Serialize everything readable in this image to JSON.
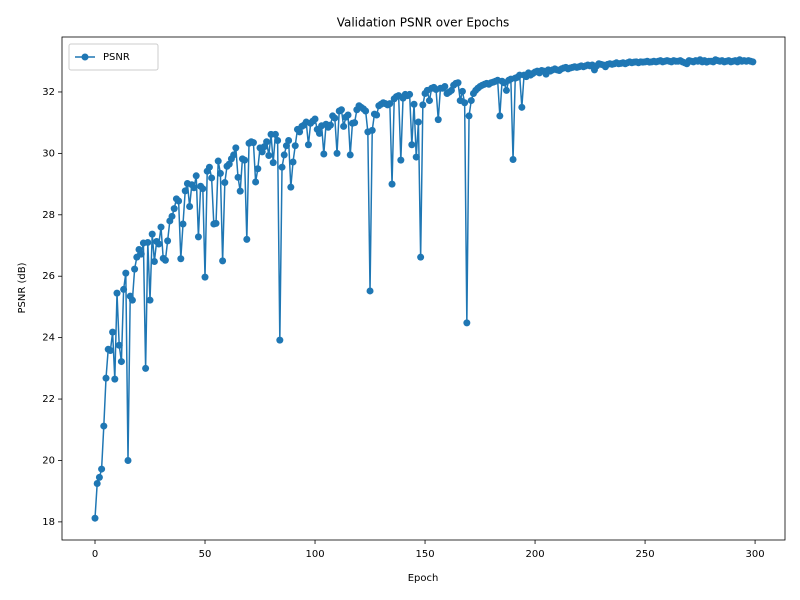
{
  "chart_data": {
    "type": "line",
    "title": "Validation PSNR over Epochs",
    "x_label": "Epoch",
    "y_label": "PSNR (dB)",
    "x": [
      0,
      1,
      2,
      3,
      4,
      5,
      6,
      7,
      8,
      9,
      10,
      11,
      12,
      13,
      14,
      15,
      16,
      17,
      18,
      19,
      20,
      21,
      22,
      23,
      24,
      25,
      26,
      27,
      28,
      29,
      30,
      31,
      32,
      33,
      34,
      35,
      36,
      37,
      38,
      39,
      40,
      41,
      42,
      43,
      44,
      45,
      46,
      47,
      48,
      49,
      50,
      51,
      52,
      53,
      54,
      55,
      56,
      57,
      58,
      59,
      60,
      61,
      62,
      63,
      64,
      65,
      66,
      67,
      68,
      69,
      70,
      71,
      72,
      73,
      74,
      75,
      76,
      77,
      78,
      79,
      80,
      81,
      82,
      83,
      84,
      85,
      86,
      87,
      88,
      89,
      90,
      91,
      92,
      93,
      94,
      95,
      96,
      97,
      98,
      99,
      100,
      101,
      102,
      103,
      104,
      105,
      106,
      107,
      108,
      109,
      110,
      111,
      112,
      113,
      114,
      115,
      116,
      117,
      118,
      119,
      120,
      121,
      122,
      123,
      124,
      125,
      126,
      127,
      128,
      129,
      130,
      131,
      132,
      133,
      134,
      135,
      136,
      137,
      138,
      139,
      140,
      141,
      142,
      143,
      144,
      145,
      146,
      147,
      148,
      149,
      150,
      151,
      152,
      153,
      154,
      155,
      156,
      157,
      158,
      159,
      160,
      161,
      162,
      163,
      164,
      165,
      166,
      167,
      168,
      169,
      170,
      171,
      172,
      173,
      174,
      175,
      176,
      177,
      178,
      179,
      180,
      181,
      182,
      183,
      184,
      185,
      186,
      187,
      188,
      189,
      190,
      191,
      192,
      193,
      194,
      195,
      196,
      197,
      198,
      199,
      200,
      201,
      202,
      203,
      204,
      205,
      206,
      207,
      208,
      209,
      210,
      211,
      212,
      213,
      214,
      215,
      216,
      217,
      218,
      219,
      220,
      221,
      222,
      223,
      224,
      225,
      226,
      227,
      228,
      229,
      230,
      231,
      232,
      233,
      234,
      235,
      236,
      237,
      238,
      239,
      240,
      241,
      242,
      243,
      244,
      245,
      246,
      247,
      248,
      249,
      250,
      251,
      252,
      253,
      254,
      255,
      256,
      257,
      258,
      259,
      260,
      261,
      262,
      263,
      264,
      265,
      266,
      267,
      268,
      269,
      270,
      271,
      272,
      273,
      274,
      275,
      276,
      277,
      278,
      279,
      280,
      281,
      282,
      283,
      284,
      285,
      286,
      287,
      288,
      289,
      290,
      291,
      292,
      293,
      294,
      295,
      296,
      297,
      298,
      299
    ],
    "series": [
      {
        "name": "PSNR",
        "color": "#1f77b4",
        "values": [
          18.12,
          19.25,
          19.45,
          19.72,
          21.12,
          22.68,
          23.62,
          23.58,
          24.18,
          22.65,
          25.45,
          23.75,
          23.22,
          25.57,
          26.1,
          20.0,
          25.35,
          25.22,
          26.23,
          26.62,
          26.87,
          26.72,
          27.08,
          23.0,
          27.1,
          25.22,
          27.37,
          26.48,
          27.13,
          27.05,
          27.6,
          26.58,
          26.52,
          27.15,
          27.8,
          27.95,
          28.2,
          28.52,
          28.45,
          26.57,
          27.7,
          28.78,
          29.02,
          28.27,
          28.98,
          28.88,
          29.27,
          27.28,
          28.93,
          28.85,
          25.97,
          29.42,
          29.55,
          29.2,
          27.7,
          27.72,
          29.75,
          29.35,
          26.5,
          29.05,
          29.58,
          29.65,
          29.82,
          29.95,
          30.18,
          29.22,
          28.77,
          29.82,
          29.78,
          27.2,
          30.33,
          30.38,
          30.35,
          29.07,
          29.5,
          30.18,
          30.05,
          30.22,
          30.38,
          29.93,
          30.62,
          29.7,
          30.62,
          30.42,
          23.92,
          29.55,
          29.95,
          30.25,
          30.42,
          28.9,
          29.72,
          30.25,
          30.78,
          30.7,
          30.88,
          30.92,
          31.02,
          30.28,
          30.98,
          31.05,
          31.12,
          30.78,
          30.65,
          30.9,
          29.98,
          30.95,
          30.85,
          30.92,
          31.22,
          31.15,
          30.0,
          31.38,
          31.42,
          30.88,
          31.18,
          31.25,
          29.95,
          30.98,
          31.0,
          31.42,
          31.55,
          31.5,
          31.45,
          31.38,
          30.7,
          25.52,
          30.75,
          31.28,
          31.25,
          31.55,
          31.6,
          31.65,
          31.62,
          31.58,
          31.62,
          29.0,
          31.78,
          31.85,
          31.88,
          29.78,
          31.8,
          31.92,
          31.88,
          31.92,
          30.28,
          31.6,
          29.88,
          31.02,
          26.62,
          31.58,
          31.95,
          32.05,
          31.72,
          32.12,
          32.15,
          32.08,
          31.1,
          32.12,
          32.12,
          32.18,
          31.95,
          32.0,
          32.05,
          32.22,
          32.28,
          32.3,
          31.72,
          32.02,
          31.65,
          24.48,
          31.22,
          31.72,
          31.95,
          32.05,
          32.12,
          32.18,
          32.22,
          32.25,
          32.28,
          32.25,
          32.3,
          32.32,
          32.35,
          32.38,
          31.22,
          32.35,
          32.3,
          32.05,
          32.38,
          32.42,
          29.8,
          32.45,
          32.48,
          32.55,
          31.5,
          32.55,
          32.5,
          32.62,
          32.55,
          32.6,
          32.65,
          32.68,
          32.62,
          32.7,
          32.68,
          32.58,
          32.72,
          32.68,
          32.72,
          32.75,
          32.72,
          32.7,
          32.75,
          32.78,
          32.8,
          32.75,
          32.78,
          32.8,
          32.82,
          32.8,
          32.82,
          32.85,
          32.82,
          32.85,
          32.88,
          32.85,
          32.88,
          32.72,
          32.85,
          32.92,
          32.9,
          32.88,
          32.82,
          32.9,
          32.92,
          32.9,
          32.92,
          32.95,
          32.92,
          32.93,
          32.95,
          32.92,
          32.95,
          32.98,
          32.95,
          32.97,
          32.98,
          32.95,
          32.98,
          32.97,
          32.98,
          33.0,
          32.97,
          32.98,
          33.0,
          32.98,
          33.0,
          33.02,
          32.98,
          33.0,
          33.02,
          33.0,
          32.98,
          33.02,
          33.0,
          33.0,
          33.02,
          32.98,
          32.95,
          32.92,
          33.02,
          33.0,
          32.98,
          33.02,
          33.0,
          33.05,
          32.98,
          33.02,
          32.97,
          33.0,
          33.0,
          32.98,
          33.05,
          33.02,
          33.0,
          33.02,
          32.98,
          33.0,
          33.02,
          32.98,
          33.0,
          33.02,
          32.98,
          33.05,
          33.0,
          33.02,
          33.0,
          33.02,
          33.0,
          32.98
        ]
      }
    ],
    "xlim": [
      -15,
      313.6
    ],
    "ylim": [
      17.41,
      33.79
    ],
    "xticks": [
      0,
      50,
      100,
      150,
      200,
      250,
      300
    ],
    "yticks": [
      18,
      20,
      22,
      24,
      26,
      28,
      30,
      32
    ],
    "legend": "upper left",
    "grid": false,
    "markers": true
  }
}
